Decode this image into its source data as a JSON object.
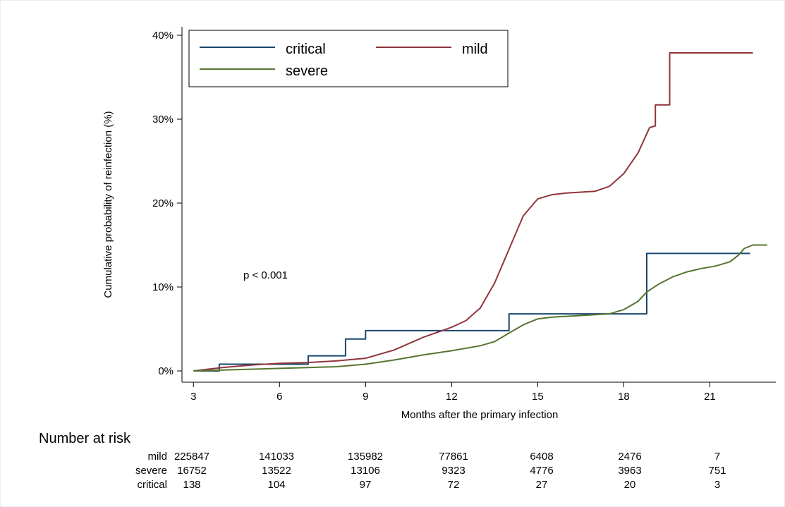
{
  "chart_data": {
    "type": "line",
    "ylabel": "Cumulative probability of reinfection (%)",
    "xlabel": "Months after the primary infection",
    "xlim": [
      2.6,
      23.3
    ],
    "ylim": [
      0,
      40
    ],
    "x_ticks": [
      3,
      6,
      9,
      12,
      15,
      18,
      21
    ],
    "x_tick_labels": [
      "3",
      "6",
      "9",
      "12",
      "15",
      "18",
      "21"
    ],
    "y_ticks": [
      0,
      10,
      20,
      30,
      40
    ],
    "y_tick_labels": [
      "0%",
      "10%",
      "20%",
      "30%",
      "40%"
    ],
    "grid": false,
    "legend_position": "top-left",
    "annotation": "p < 0.001",
    "series": [
      {
        "name": "critical",
        "color": "#1a476f",
        "step": true,
        "points": [
          [
            3,
            0
          ],
          [
            3.9,
            0
          ],
          [
            3.9,
            0.8
          ],
          [
            7.0,
            0.8
          ],
          [
            7.0,
            1.8
          ],
          [
            8.3,
            1.8
          ],
          [
            8.3,
            3.8
          ],
          [
            9.0,
            3.8
          ],
          [
            9.0,
            4.8
          ],
          [
            14.0,
            4.8
          ],
          [
            14.0,
            6.8
          ],
          [
            18.8,
            6.8
          ],
          [
            18.8,
            14.0
          ],
          [
            22.4,
            14.0
          ]
        ]
      },
      {
        "name": "mild",
        "color": "#90353b",
        "step": false,
        "points": [
          [
            3,
            0
          ],
          [
            4,
            0.4
          ],
          [
            5,
            0.7
          ],
          [
            6,
            0.9
          ],
          [
            7,
            1.0
          ],
          [
            8,
            1.2
          ],
          [
            9,
            1.5
          ],
          [
            10,
            2.5
          ],
          [
            11,
            4.0
          ],
          [
            12,
            5.2
          ],
          [
            12.5,
            6.0
          ],
          [
            13,
            7.5
          ],
          [
            13.5,
            10.5
          ],
          [
            14,
            14.5
          ],
          [
            14.5,
            18.5
          ],
          [
            15,
            20.5
          ],
          [
            15.5,
            21.0
          ],
          [
            16,
            21.2
          ],
          [
            17,
            21.4
          ],
          [
            17.5,
            22.0
          ],
          [
            18,
            23.5
          ],
          [
            18.5,
            26.0
          ],
          [
            18.9,
            29.0
          ],
          [
            19.1,
            29.2
          ],
          [
            19.1,
            31.7
          ],
          [
            19.6,
            31.7
          ],
          [
            19.6,
            37.9
          ],
          [
            22.5,
            37.9
          ]
        ]
      },
      {
        "name": "severe",
        "color": "#55752f",
        "step": false,
        "points": [
          [
            3,
            0
          ],
          [
            4,
            0.1
          ],
          [
            5,
            0.2
          ],
          [
            6,
            0.3
          ],
          [
            7,
            0.4
          ],
          [
            8,
            0.5
          ],
          [
            9,
            0.8
          ],
          [
            10,
            1.3
          ],
          [
            11,
            1.9
          ],
          [
            12,
            2.4
          ],
          [
            13,
            3.0
          ],
          [
            13.5,
            3.5
          ],
          [
            14,
            4.5
          ],
          [
            14.5,
            5.5
          ],
          [
            15,
            6.2
          ],
          [
            15.5,
            6.4
          ],
          [
            16,
            6.5
          ],
          [
            17,
            6.7
          ],
          [
            17.5,
            6.8
          ],
          [
            18,
            7.3
          ],
          [
            18.5,
            8.3
          ],
          [
            18.8,
            9.4
          ],
          [
            19.2,
            10.3
          ],
          [
            19.7,
            11.2
          ],
          [
            20.2,
            11.8
          ],
          [
            20.7,
            12.2
          ],
          [
            21.2,
            12.5
          ],
          [
            21.7,
            13.0
          ],
          [
            22,
            13.8
          ],
          [
            22.2,
            14.6
          ],
          [
            22.5,
            15.0
          ],
          [
            23,
            15.0
          ]
        ]
      }
    ]
  },
  "risk_table": {
    "title": "Number at risk",
    "rows": [
      {
        "label": "mild",
        "values": [
          "225847",
          "141033",
          "135982",
          "77861",
          "6408",
          "2476",
          "7"
        ]
      },
      {
        "label": "severe",
        "values": [
          "16752",
          "13522",
          "13106",
          "9323",
          "4776",
          "3963",
          "751"
        ]
      },
      {
        "label": "critical",
        "values": [
          "138",
          "104",
          "97",
          "72",
          "27",
          "20",
          "3"
        ]
      }
    ]
  }
}
